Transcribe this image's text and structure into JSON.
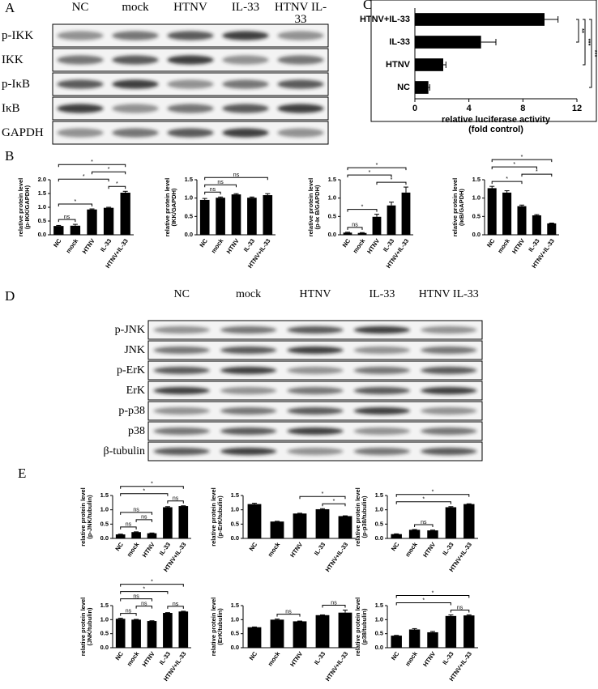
{
  "figure_labels": [
    "A",
    "B",
    "C",
    "D",
    "E"
  ],
  "blots": [
    {
      "lanes": [
        "NC",
        "mock",
        "HTNV",
        "IL-33",
        "HTNV IL-33"
      ],
      "rows": [
        "p-IKK",
        "IKK",
        "p-IκB",
        "IκB",
        "GAPDH"
      ]
    },
    {
      "lanes": [
        "NC",
        "mock",
        "HTNV",
        "IL-33",
        "HTNV IL-33"
      ],
      "rows": [
        "p-JNK",
        "JNK",
        "p-ErK",
        "ErK",
        "p-p38",
        "p38",
        "β-tubulin"
      ]
    }
  ],
  "chart_data": [
    {
      "type": "bar",
      "orientation": "horizontal",
      "categories": [
        "HTNV+IL-33",
        "IL-33",
        "HTNV",
        "NC"
      ],
      "values": [
        9.6,
        4.9,
        2.1,
        1.0
      ],
      "errors": [
        1.0,
        1.1,
        0.2,
        0.1
      ],
      "color": "#000000",
      "xlim": [
        0,
        12
      ],
      "xticks": [
        0,
        4,
        8,
        12
      ],
      "xlabel": [
        "relative luciferase activity",
        "(fold control)"
      ],
      "annotations": [
        {
          "text": "**",
          "from": 1,
          "to": 0
        },
        {
          "text": "***",
          "from": 2,
          "to": 0
        },
        {
          "text": "***",
          "from": 3,
          "to": 0
        }
      ]
    },
    {
      "type": "bar",
      "categories": [
        "NC",
        "mock",
        "HTNV",
        "IL-33",
        "HTNV+IL-33"
      ],
      "values": [
        0.32,
        0.33,
        0.92,
        0.98,
        1.53
      ],
      "errors": [
        0.02,
        0.05,
        0.02,
        0.02,
        0.05
      ],
      "color": "#000000",
      "ylim": [
        0,
        2
      ],
      "yticks": [
        {
          "value": 0,
          "label": "0.0"
        },
        0.5,
        {
          "value": 1,
          "label": "1.0"
        },
        1.5,
        {
          "value": 2,
          "label": "2.0"
        }
      ],
      "ylabel": [
        "relative protein level",
        "(p-IKK/GAPDH)"
      ],
      "annotations": [
        {
          "text": "ns",
          "from": 0,
          "to": 1
        },
        {
          "text": "*",
          "from": 0,
          "to": 2
        },
        {
          "text": "*",
          "from": 3,
          "to": 4
        },
        {
          "text": "*",
          "from": 0,
          "to": 3
        },
        {
          "text": "*",
          "from": 2,
          "to": 4
        },
        {
          "text": "*",
          "from": 0,
          "to": 4
        }
      ]
    },
    {
      "type": "bar",
      "categories": [
        "NC",
        "mock",
        "HTNV",
        "IL-33",
        "HTNV+IL-33"
      ],
      "values": [
        0.95,
        1.01,
        1.1,
        1.01,
        1.08
      ],
      "errors": [
        0.04,
        0.02,
        0.02,
        0.02,
        0.04
      ],
      "color": "#000000",
      "ylim": [
        0,
        1.5
      ],
      "yticks": [
        {
          "value": 0,
          "label": "0.0"
        },
        0.5,
        {
          "value": 1,
          "label": "1.0"
        },
        1.5
      ],
      "ylabel": [
        "relative protein level",
        "(IKK/GAPDH)"
      ],
      "annotations": [
        {
          "text": "ns",
          "from": 0,
          "to": 1
        },
        {
          "text": "ns",
          "from": 0,
          "to": 2
        },
        {
          "text": "ns",
          "from": 0,
          "to": 4
        }
      ]
    },
    {
      "type": "bar",
      "categories": [
        "NC",
        "mock",
        "HTNV",
        "IL-33",
        "HTNV+IL-33"
      ],
      "values": [
        0.06,
        0.05,
        0.49,
        0.8,
        1.15
      ],
      "errors": [
        0.01,
        0.01,
        0.07,
        0.09,
        0.15
      ],
      "color": "#000000",
      "ylim": [
        0,
        1.5
      ],
      "yticks": [
        {
          "value": 0,
          "label": "0.0"
        },
        0.5,
        {
          "value": 1,
          "label": "1.0"
        },
        1.5
      ],
      "ylabel": [
        "relative protein level",
        "(p-Iκ B/GAPDH)"
      ],
      "annotations": [
        {
          "text": "ns",
          "from": 0,
          "to": 1
        },
        {
          "text": "*",
          "from": 0,
          "to": 2
        },
        {
          "text": "*",
          "from": 2,
          "to": 4
        },
        {
          "text": "*",
          "from": 0,
          "to": 3
        },
        {
          "text": "*",
          "from": 0,
          "to": 4
        }
      ]
    },
    {
      "type": "bar",
      "categories": [
        "NC",
        "mock",
        "HTNV",
        "IL-33",
        "HTNV+IL-33"
      ],
      "values": [
        1.27,
        1.15,
        0.78,
        0.53,
        0.31
      ],
      "errors": [
        0.05,
        0.05,
        0.03,
        0.02,
        0.01
      ],
      "color": "#000000",
      "ylim": [
        0,
        1.5
      ],
      "yticks": [
        {
          "value": 0,
          "label": "0.0"
        },
        0.5,
        {
          "value": 1,
          "label": "1.0"
        },
        1.5
      ],
      "ylabel": [
        "relative protein level",
        "(IκB/GAPDH)"
      ],
      "annotations": [
        {
          "text": "*",
          "from": 0,
          "to": 2
        },
        {
          "text": "*",
          "from": 2,
          "to": 4
        },
        {
          "text": "*",
          "from": 0,
          "to": 3
        },
        {
          "text": "*",
          "from": 0,
          "to": 4
        }
      ]
    },
    {
      "type": "bar",
      "categories": [
        "NC",
        "mock",
        "HTNV",
        "IL-33",
        "HTNV+IL-33"
      ],
      "values": [
        0.14,
        0.22,
        0.18,
        1.09,
        1.13
      ],
      "errors": [
        0.01,
        0.01,
        0.01,
        0.02,
        0.01
      ],
      "color": "#000000",
      "ylim": [
        0,
        1.5
      ],
      "yticks": [
        {
          "value": 0,
          "label": "0.0"
        },
        0.5,
        {
          "value": 1,
          "label": "1.0"
        },
        1.5
      ],
      "ylabel": [
        "relative protein level",
        "(p-JNK/tubulin)"
      ],
      "annotations": [
        {
          "text": "ns",
          "from": 0,
          "to": 1
        },
        {
          "text": "ns",
          "from": 1,
          "to": 2
        },
        {
          "text": "ns",
          "from": 3,
          "to": 4
        },
        {
          "text": "ns",
          "from": 0,
          "to": 2
        },
        {
          "text": "*",
          "from": 0,
          "to": 3
        },
        {
          "text": "*",
          "from": 0,
          "to": 4
        }
      ]
    },
    {
      "type": "bar",
      "categories": [
        "NC",
        "mock",
        "HTNV",
        "IL-33",
        "HTNV+IL-33"
      ],
      "values": [
        1.2,
        0.59,
        0.87,
        1.02,
        0.78
      ],
      "errors": [
        0.03,
        0.01,
        0.01,
        0.02,
        0.01
      ],
      "color": "#000000",
      "ylim": [
        0,
        1.5
      ],
      "yticks": [
        {
          "value": 0,
          "label": "0.0"
        },
        0.5,
        {
          "value": 1,
          "label": "1.0"
        },
        1.5
      ],
      "ylabel": [
        "relative protein level",
        "(p-ErK/tubulin)"
      ],
      "annotations": [
        {
          "text": "*",
          "from": 3,
          "to": 4
        },
        {
          "text": "*",
          "from": 2,
          "to": 4
        }
      ]
    },
    {
      "type": "bar",
      "categories": [
        "NC",
        "mock",
        "HTNV",
        "IL-33",
        "HTNV+IL-33"
      ],
      "values": [
        0.15,
        0.3,
        0.28,
        1.09,
        1.2
      ],
      "errors": [
        0.01,
        0.01,
        0.01,
        0.02,
        0.01
      ],
      "color": "#000000",
      "ylim": [
        0,
        1.5
      ],
      "yticks": [
        {
          "value": 0,
          "label": "0.0"
        },
        0.5,
        {
          "value": 1,
          "label": "1.0"
        },
        1.5
      ],
      "ylabel": [
        "relative protein level",
        "(p-p38/tubulin)"
      ],
      "annotations": [
        {
          "text": "ns",
          "from": 1,
          "to": 2
        },
        {
          "text": "*",
          "from": 0,
          "to": 3
        },
        {
          "text": "*",
          "from": 0,
          "to": 4
        }
      ]
    },
    {
      "type": "bar",
      "categories": [
        "NC",
        "mock",
        "HTNV",
        "IL-33",
        "HTNV+IL-33"
      ],
      "values": [
        1.03,
        1.0,
        0.95,
        1.24,
        1.29
      ],
      "errors": [
        0.02,
        0.01,
        0.01,
        0.01,
        0.01
      ],
      "color": "#000000",
      "ylim": [
        0,
        1.5
      ],
      "yticks": [
        {
          "value": 0,
          "label": "0.0"
        },
        0.5,
        {
          "value": 1,
          "label": "1.0"
        },
        1.5
      ],
      "ylabel": [
        "relative protein level",
        "(JNK/tubulin)"
      ],
      "annotations": [
        {
          "text": "ns",
          "from": 0,
          "to": 1
        },
        {
          "text": "ns",
          "from": 1,
          "to": 2
        },
        {
          "text": "ns",
          "from": 3,
          "to": 4
        },
        {
          "text": "ns",
          "from": 0,
          "to": 2
        },
        {
          "text": "*",
          "from": 0,
          "to": 3
        },
        {
          "text": "*",
          "from": 0,
          "to": 4
        }
      ]
    },
    {
      "type": "bar",
      "categories": [
        "NC",
        "mock",
        "HTNV",
        "IL-33",
        "HTNV+IL-33"
      ],
      "values": [
        0.73,
        1.0,
        0.94,
        1.16,
        1.25
      ],
      "errors": [
        0.01,
        0.02,
        0.01,
        0.01,
        0.09
      ],
      "color": "#000000",
      "ylim": [
        0,
        1.5
      ],
      "yticks": [
        {
          "value": 0,
          "label": "0.0"
        },
        0.5,
        {
          "value": 1,
          "label": "1.0"
        },
        1.5
      ],
      "ylabel": [
        "relative protein level",
        "(ErK/tubulin)"
      ],
      "annotations": [
        {
          "text": "ns",
          "from": 1,
          "to": 2
        },
        {
          "text": "ns",
          "from": 3,
          "to": 4
        }
      ]
    },
    {
      "type": "bar",
      "categories": [
        "NC",
        "mock",
        "HTNV",
        "IL-33",
        "HTNV+IL-33"
      ],
      "values": [
        0.43,
        0.65,
        0.55,
        1.13,
        1.15
      ],
      "errors": [
        0.01,
        0.03,
        0.03,
        0.04,
        0.02
      ],
      "color": "#000000",
      "ylim": [
        0,
        1.5
      ],
      "yticks": [
        {
          "value": 0,
          "label": "0.0"
        },
        0.5,
        {
          "value": 1,
          "label": "1.0"
        },
        1.5
      ],
      "ylabel": [
        "relative protein level",
        "(p38/tubulin)"
      ],
      "annotations": [
        {
          "text": "ns",
          "from": 3,
          "to": 4
        },
        {
          "text": "*",
          "from": 0,
          "to": 3
        },
        {
          "text": "*",
          "from": 0,
          "to": 4
        }
      ]
    }
  ]
}
